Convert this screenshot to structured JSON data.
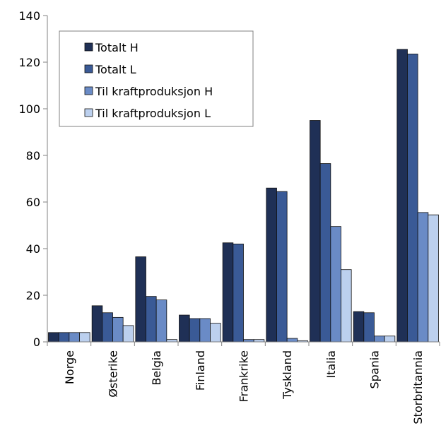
{
  "chart_data": {
    "type": "bar",
    "categories": [
      "Norge",
      "Østerike",
      "Belgia",
      "Finland",
      "Frankrike",
      "Tyskland",
      "Italia",
      "Spania",
      "Storbritannia"
    ],
    "series": [
      {
        "name": "Totalt H",
        "color": "#1f3056",
        "values": [
          4,
          15.5,
          36.5,
          11.5,
          42.5,
          66,
          95,
          13,
          125.5
        ]
      },
      {
        "name": "Totalt L",
        "color": "#3a5a96",
        "values": [
          4,
          12.5,
          19.5,
          10,
          42,
          64.5,
          76.5,
          12.5,
          123.5
        ]
      },
      {
        "name": "Til kraftproduksjon H",
        "color": "#6a8bc6",
        "values": [
          4,
          10.5,
          18,
          10,
          1,
          1.5,
          49.5,
          2.5,
          55.5
        ]
      },
      {
        "name": "Til kraftproduksjon L",
        "color": "#bcd0ee",
        "values": [
          4,
          7,
          1,
          8,
          1,
          0.5,
          31,
          2.5,
          54.5
        ]
      }
    ],
    "y_ticks": [
      "0",
      "20",
      "40",
      "60",
      "80",
      "100",
      "120",
      "140"
    ],
    "ylim": [
      0,
      140
    ],
    "grid": false,
    "legend_position": "top-left"
  }
}
